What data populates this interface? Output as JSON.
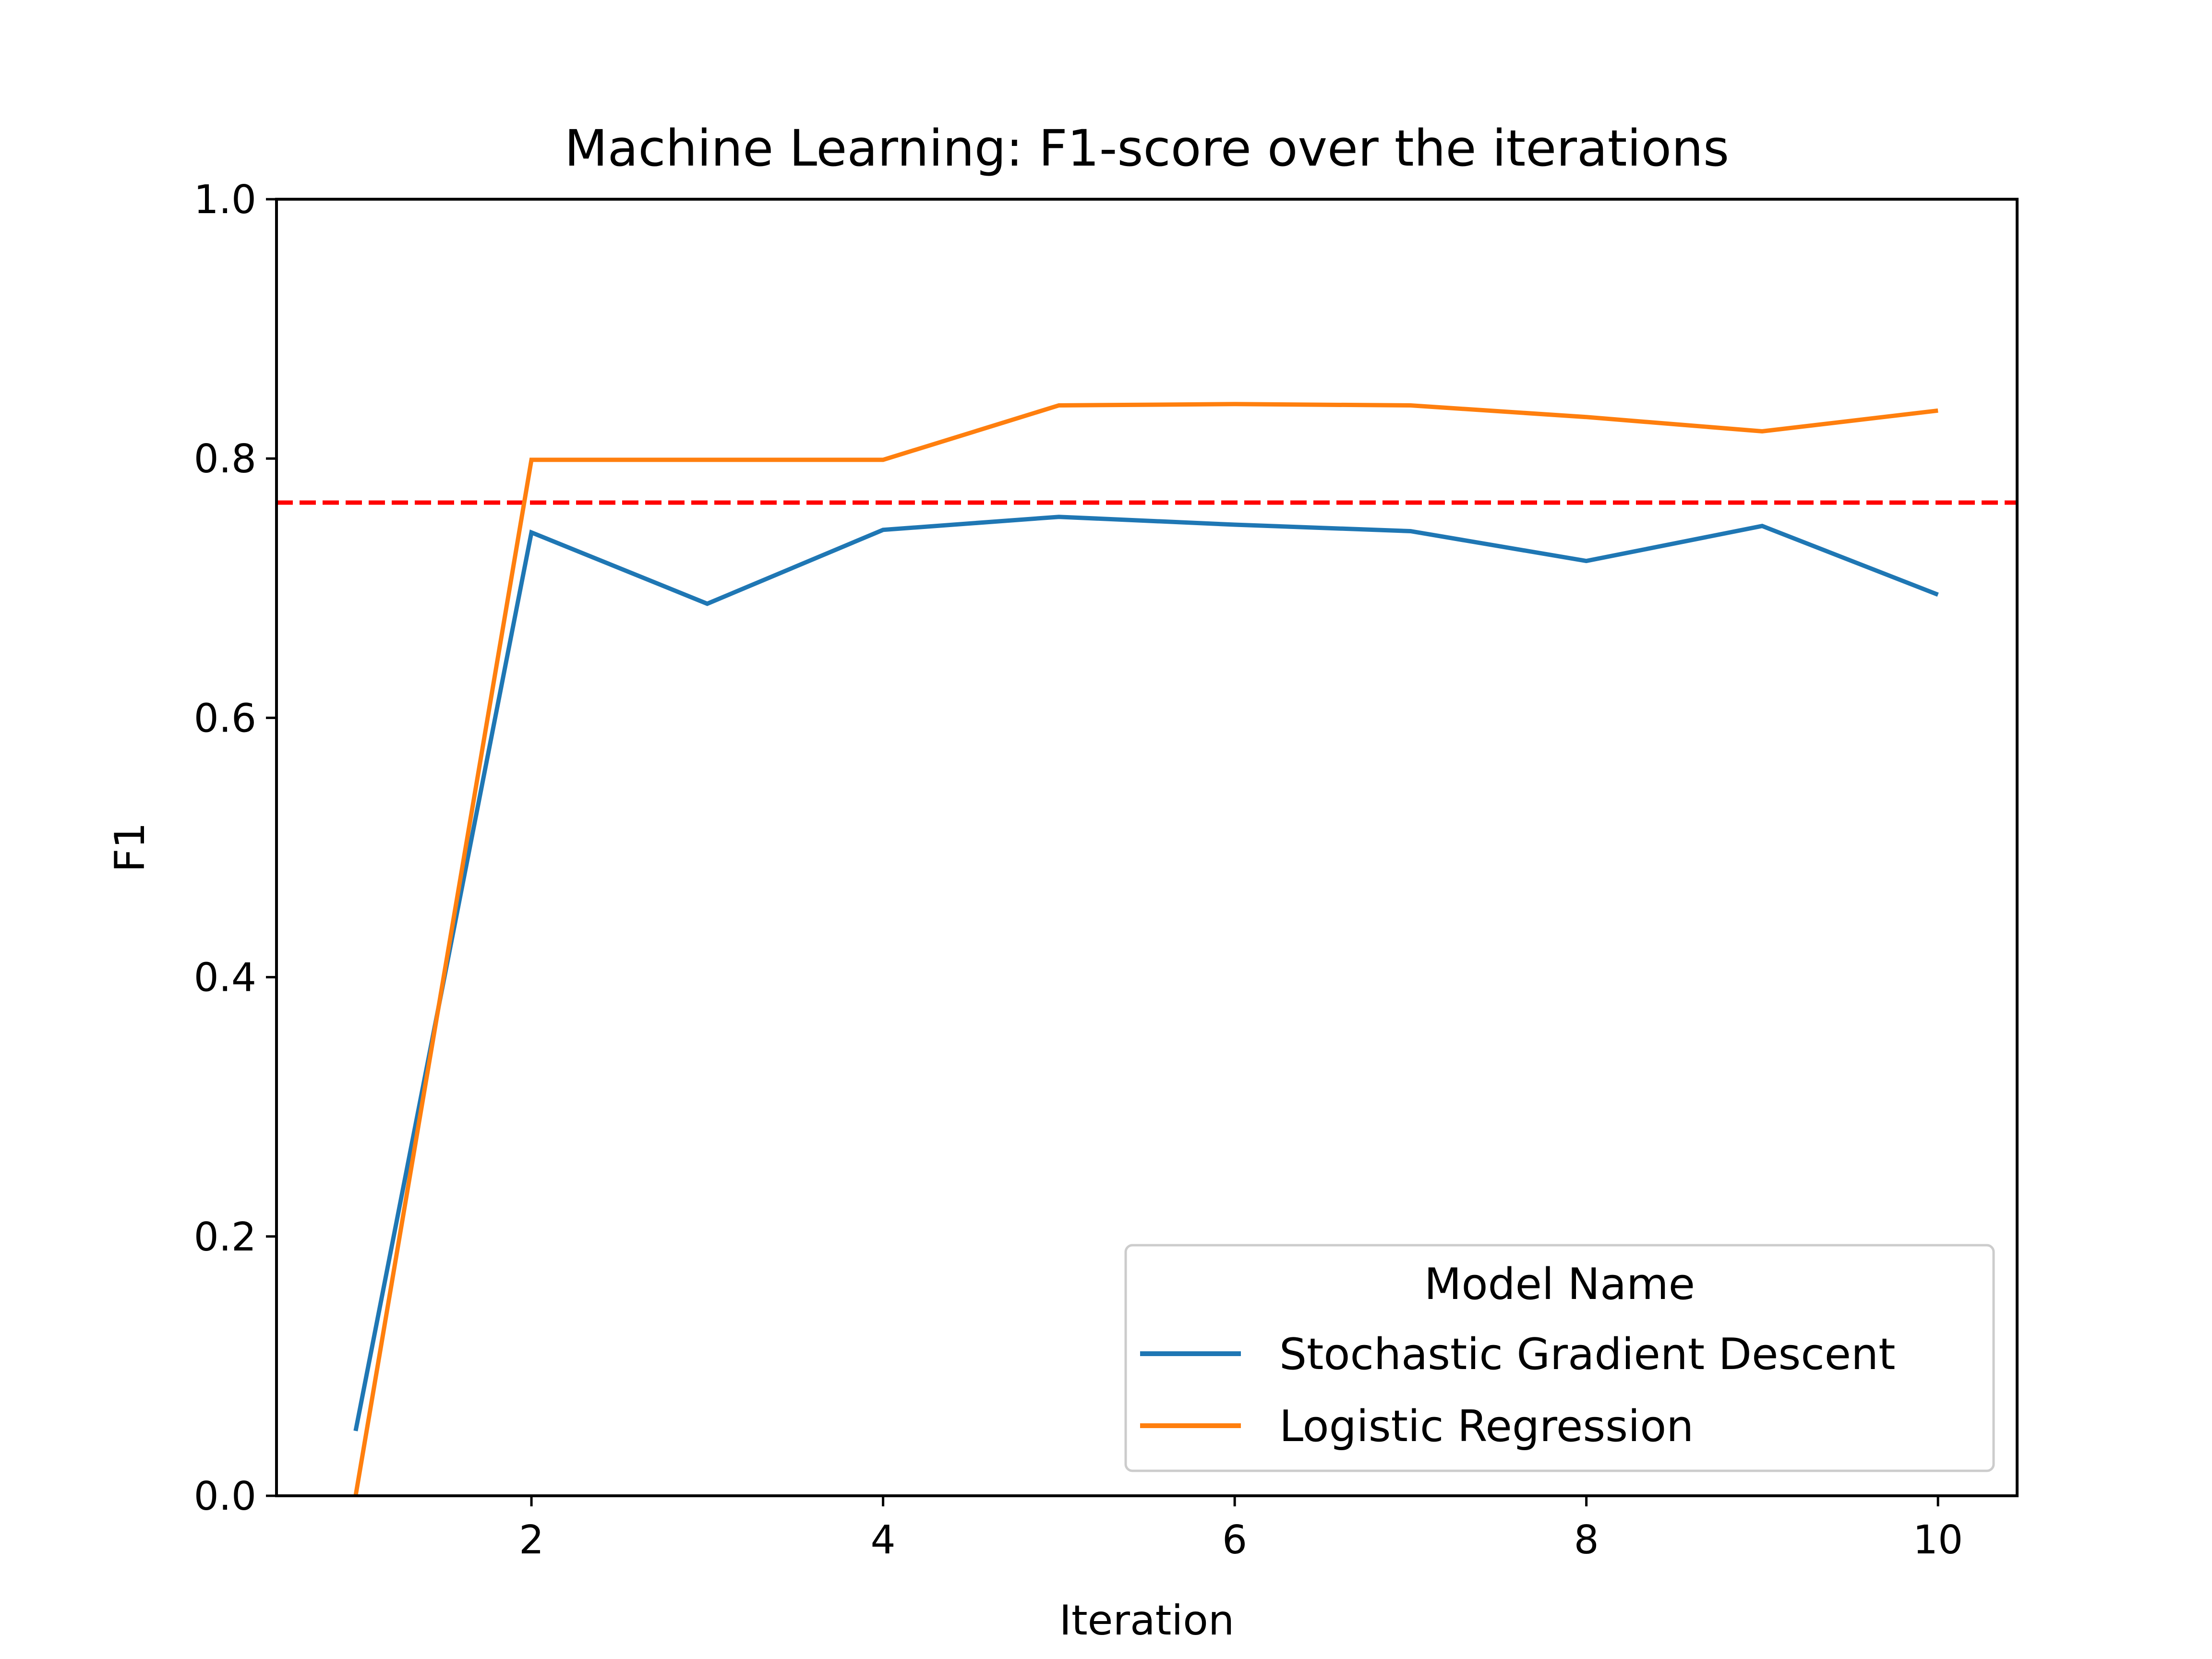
{
  "chart_data": {
    "type": "line",
    "title": "Machine Learning: F1-score over the iterations",
    "xlabel": "Iteration",
    "ylabel": "F1",
    "xlim": [
      0.55,
      10.45
    ],
    "ylim": [
      0.0,
      1.0
    ],
    "xticks": [
      2,
      4,
      6,
      8,
      10
    ],
    "xtick_labels": [
      "2",
      "4",
      "6",
      "8",
      "10"
    ],
    "yticks": [
      0.0,
      0.2,
      0.4,
      0.6,
      0.8,
      1.0
    ],
    "ytick_labels": [
      "0.0",
      "0.2",
      "0.4",
      "0.6",
      "0.8",
      "1.0"
    ],
    "grid": false,
    "x": [
      1,
      2,
      3,
      4,
      5,
      6,
      7,
      8,
      9,
      10
    ],
    "series": [
      {
        "name": "Stochastic Gradient Descent",
        "color": "#1f77b4",
        "values": [
          0.05,
          0.743,
          0.688,
          0.745,
          0.755,
          0.749,
          0.744,
          0.721,
          0.748,
          0.695
        ]
      },
      {
        "name": "Logistic Regression",
        "color": "#ff7f0e",
        "values": [
          0.0,
          0.799,
          0.799,
          0.799,
          0.841,
          0.842,
          0.841,
          0.832,
          0.821,
          0.837
        ]
      }
    ],
    "reference_line": {
      "y": 0.766,
      "color": "#ff0000",
      "style": "dashed"
    },
    "legend": {
      "title": "Model Name",
      "placement": "lower-right"
    }
  }
}
